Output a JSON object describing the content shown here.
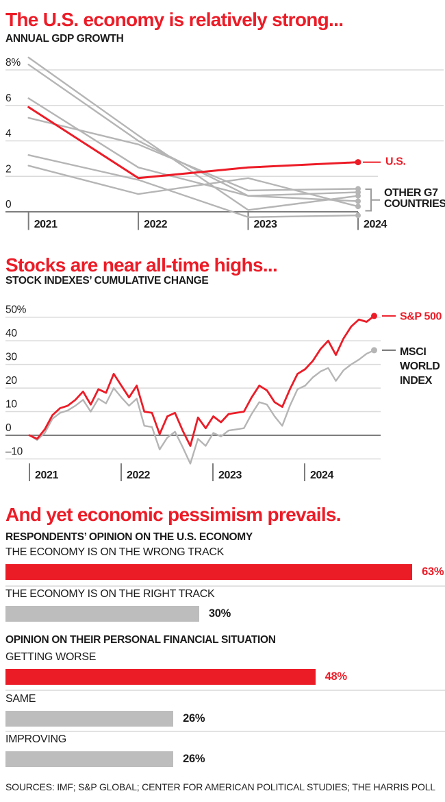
{
  "colors": {
    "red": "#ec1c27",
    "line_gray": "#b5b5b5",
    "grid": "#dadada",
    "axis": "#7d7d7d",
    "text": "#1b1b1b",
    "bar_gray": "#bdbdbd",
    "divider": "#e2e2e2"
  },
  "chart_data": [
    {
      "id": "gdp",
      "type": "line",
      "title": "The U.S. economy is relatively strong...",
      "subtitle": "ANNUAL GDP GROWTH",
      "x_labels": [
        "2021",
        "2022",
        "2023",
        "2024"
      ],
      "y_ticks": [
        {
          "label": "8%",
          "value": 8
        },
        {
          "label": "6",
          "value": 6
        },
        {
          "label": "4",
          "value": 4
        },
        {
          "label": "2",
          "value": 2
        },
        {
          "label": "0",
          "value": 0
        }
      ],
      "ylim": [
        -0.8,
        8.8
      ],
      "grid": true,
      "legend_position": "right-annotations",
      "series": [
        {
          "name": "other-g7-a",
          "color": "gray",
          "values": [
            8.7,
            4.3,
            0.1,
            0.9
          ]
        },
        {
          "name": "other-g7-b",
          "color": "gray",
          "values": [
            8.3,
            4.0,
            0.9,
            0.6
          ]
        },
        {
          "name": "other-g7-c",
          "color": "gray",
          "values": [
            6.4,
            2.5,
            0.9,
            1.1
          ]
        },
        {
          "name": "other-g7-d",
          "color": "gray",
          "values": [
            5.3,
            3.8,
            1.2,
            1.3
          ]
        },
        {
          "name": "other-g7-e",
          "color": "gray",
          "values": [
            3.2,
            1.8,
            -0.3,
            -0.2
          ]
        },
        {
          "name": "other-g7-f",
          "color": "gray",
          "values": [
            2.6,
            1.0,
            1.9,
            0.3
          ]
        },
        {
          "name": "U.S.",
          "color": "red",
          "values": [
            5.9,
            1.9,
            2.5,
            2.8
          ]
        }
      ],
      "annotations": {
        "us": "U.S.",
        "g7": [
          "OTHER G7",
          "COUNTRIES"
        ]
      }
    },
    {
      "id": "stocks",
      "type": "line",
      "title": "Stocks are near all-time highs...",
      "subtitle": "STOCK INDEXES’ CUMULATIVE CHANGE",
      "x_labels": [
        "2021",
        "2022",
        "2023",
        "2024"
      ],
      "y_ticks": [
        {
          "label": "50%",
          "value": 50
        },
        {
          "label": "40",
          "value": 40
        },
        {
          "label": "30",
          "value": 30
        },
        {
          "label": "20",
          "value": 20
        },
        {
          "label": "10",
          "value": 10
        },
        {
          "label": "0",
          "value": 0
        },
        {
          "label": "–10",
          "value": -10
        }
      ],
      "ylim": [
        -14,
        53
      ],
      "grid": true,
      "x_start": "2021-01",
      "frequency": "monthly",
      "series": [
        {
          "name": "MSCI WORLD INDEX",
          "color": "gray",
          "values": [
            0,
            -2,
            1,
            7,
            9.5,
            10.5,
            12.5,
            15,
            10,
            15.5,
            13.5,
            20,
            16,
            12.5,
            15.5,
            4,
            3.5,
            -6,
            -1,
            1.5,
            -5,
            -12,
            -1.5,
            -4.5,
            1,
            -0.5,
            2,
            2.5,
            3,
            9,
            14,
            13,
            8,
            4,
            12.5,
            19.5,
            21,
            24.5,
            27,
            28.5,
            23,
            27.5,
            30,
            32,
            34.5,
            36
          ]
        },
        {
          "name": "S&P 500",
          "color": "red",
          "values": [
            0,
            -1.5,
            2.5,
            8.5,
            11.5,
            12.5,
            15,
            18.5,
            13,
            19.5,
            18,
            26,
            21,
            16,
            21,
            10,
            9.5,
            0.5,
            8,
            9.5,
            2,
            -4.5,
            7.5,
            3,
            8,
            5.5,
            9,
            9.5,
            10,
            16,
            21,
            19,
            14,
            12,
            19.5,
            26,
            28,
            31.5,
            36.5,
            40,
            34,
            41,
            46,
            49,
            48,
            50.5
          ]
        }
      ],
      "annotations": {
        "sp": "S&P 500",
        "msci": [
          "MSCI",
          "WORLD",
          "INDEX"
        ]
      }
    },
    {
      "id": "poll",
      "type": "bar",
      "title": "And yet economic pessimism prevails.",
      "groups": [
        {
          "heading": "RESPONDENTS’ OPINION ON THE U.S. ECONOMY",
          "bars": [
            {
              "label": "THE ECONOMY IS ON THE WRONG TRACK",
              "value": 63,
              "display": "63%",
              "emphasis": true
            },
            {
              "label": "THE ECONOMY IS ON THE RIGHT TRACK",
              "value": 30,
              "display": "30%",
              "emphasis": false
            }
          ]
        },
        {
          "heading": "OPINION ON THEIR PERSONAL FINANCIAL SITUATION",
          "bars": [
            {
              "label": "GETTING WORSE",
              "value": 48,
              "display": "48%",
              "emphasis": true
            },
            {
              "label": "SAME",
              "value": 26,
              "display": "26%",
              "emphasis": false
            },
            {
              "label": "IMPROVING",
              "value": 26,
              "display": "26%",
              "emphasis": false
            }
          ]
        }
      ]
    }
  ],
  "sources": "SOURCES: IMF; S&P GLOBAL; CENTER FOR AMERICAN POLITICAL STUDIES; THE HARRIS POLL"
}
